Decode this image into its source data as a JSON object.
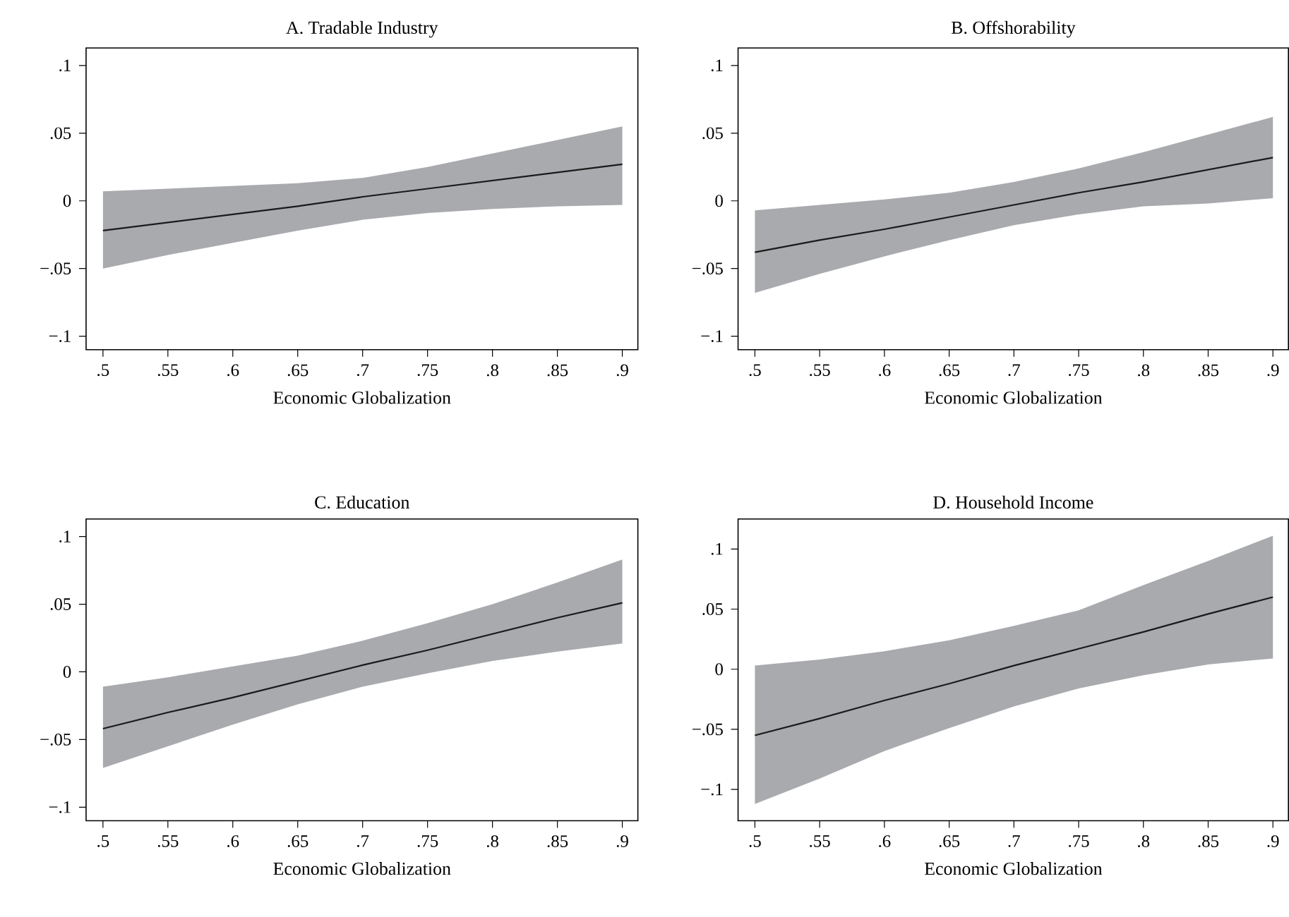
{
  "chart_data": [
    {
      "type": "line",
      "title": "A. Tradable Industry",
      "xlabel": "Economic Globalization",
      "x": [
        0.5,
        0.55,
        0.6,
        0.65,
        0.7,
        0.75,
        0.8,
        0.85,
        0.9
      ],
      "series": [
        {
          "color": "#1a1a1a",
          "values": [
            -0.022,
            -0.016,
            -0.01,
            -0.004,
            0.003,
            0.009,
            0.015,
            0.021,
            0.027
          ],
          "lower": [
            -0.05,
            -0.04,
            -0.031,
            -0.022,
            -0.014,
            -0.009,
            -0.006,
            -0.004,
            -0.003
          ],
          "upper": [
            0.007,
            0.009,
            0.011,
            0.013,
            0.017,
            0.025,
            0.035,
            0.045,
            0.055
          ]
        }
      ],
      "xlim": [
        0.487,
        0.912
      ],
      "ylim": [
        -0.11,
        0.113
      ],
      "xticks": [
        {
          "value": 0.5,
          "label": ".5"
        },
        {
          "value": 0.55,
          "label": ".55"
        },
        {
          "value": 0.6,
          "label": ".6"
        },
        {
          "value": 0.65,
          "label": ".65"
        },
        {
          "value": 0.7,
          "label": ".7"
        },
        {
          "value": 0.75,
          "label": ".75"
        },
        {
          "value": 0.8,
          "label": ".8"
        },
        {
          "value": 0.85,
          "label": ".85"
        },
        {
          "value": 0.9,
          "label": ".9"
        }
      ],
      "yticks": [
        {
          "value": -0.1,
          "label": "−.1"
        },
        {
          "value": -0.05,
          "label": "−.05"
        },
        0,
        {
          "value": 0.05,
          "label": ".05"
        },
        {
          "value": 0.1,
          "label": ".1"
        }
      ]
    },
    {
      "type": "line",
      "title": "B. Offshorability",
      "xlabel": "Economic Globalization",
      "x": [
        0.5,
        0.55,
        0.6,
        0.65,
        0.7,
        0.75,
        0.8,
        0.85,
        0.9
      ],
      "series": [
        {
          "color": "#1a1a1a",
          "values": [
            -0.038,
            -0.029,
            -0.021,
            -0.012,
            -0.003,
            0.006,
            0.014,
            0.023,
            0.032
          ],
          "lower": [
            -0.068,
            -0.054,
            -0.041,
            -0.029,
            -0.018,
            -0.01,
            -0.004,
            -0.002,
            0.002
          ],
          "upper": [
            -0.007,
            -0.003,
            0.001,
            0.006,
            0.014,
            0.024,
            0.036,
            0.049,
            0.062
          ]
        }
      ],
      "xlim": [
        0.487,
        0.912
      ],
      "ylim": [
        -0.11,
        0.113
      ],
      "xticks": [
        {
          "value": 0.5,
          "label": ".5"
        },
        {
          "value": 0.55,
          "label": ".55"
        },
        {
          "value": 0.6,
          "label": ".6"
        },
        {
          "value": 0.65,
          "label": ".65"
        },
        {
          "value": 0.7,
          "label": ".7"
        },
        {
          "value": 0.75,
          "label": ".75"
        },
        {
          "value": 0.8,
          "label": ".8"
        },
        {
          "value": 0.85,
          "label": ".85"
        },
        {
          "value": 0.9,
          "label": ".9"
        }
      ],
      "yticks": [
        {
          "value": -0.1,
          "label": "−.1"
        },
        {
          "value": -0.05,
          "label": "−.05"
        },
        0,
        {
          "value": 0.05,
          "label": ".05"
        },
        {
          "value": 0.1,
          "label": ".1"
        }
      ]
    },
    {
      "type": "line",
      "title": "C. Education",
      "xlabel": "Economic Globalization",
      "x": [
        0.5,
        0.55,
        0.6,
        0.65,
        0.7,
        0.75,
        0.8,
        0.85,
        0.9
      ],
      "series": [
        {
          "color": "#1a1a1a",
          "values": [
            -0.042,
            -0.03,
            -0.019,
            -0.007,
            0.005,
            0.016,
            0.028,
            0.04,
            0.051
          ],
          "lower": [
            -0.071,
            -0.055,
            -0.039,
            -0.024,
            -0.011,
            -0.001,
            0.008,
            0.015,
            0.021
          ],
          "upper": [
            -0.011,
            -0.004,
            0.004,
            0.012,
            0.023,
            0.036,
            0.05,
            0.066,
            0.083
          ]
        }
      ],
      "xlim": [
        0.487,
        0.912
      ],
      "ylim": [
        -0.11,
        0.113
      ],
      "xticks": [
        {
          "value": 0.5,
          "label": ".5"
        },
        {
          "value": 0.55,
          "label": ".55"
        },
        {
          "value": 0.6,
          "label": ".6"
        },
        {
          "value": 0.65,
          "label": ".65"
        },
        {
          "value": 0.7,
          "label": ".7"
        },
        {
          "value": 0.75,
          "label": ".75"
        },
        {
          "value": 0.8,
          "label": ".8"
        },
        {
          "value": 0.85,
          "label": ".85"
        },
        {
          "value": 0.9,
          "label": ".9"
        }
      ],
      "yticks": [
        {
          "value": -0.1,
          "label": "−.1"
        },
        {
          "value": -0.05,
          "label": "−.05"
        },
        0,
        {
          "value": 0.05,
          "label": ".05"
        },
        {
          "value": 0.1,
          "label": ".1"
        }
      ]
    },
    {
      "type": "line",
      "title": "D. Household Income",
      "xlabel": "Economic Globalization",
      "x": [
        0.5,
        0.55,
        0.6,
        0.65,
        0.7,
        0.75,
        0.8,
        0.85,
        0.9
      ],
      "series": [
        {
          "color": "#1a1a1a",
          "values": [
            -0.055,
            -0.041,
            -0.026,
            -0.012,
            0.003,
            0.017,
            0.031,
            0.046,
            0.06
          ],
          "lower": [
            -0.112,
            -0.091,
            -0.068,
            -0.049,
            -0.031,
            -0.016,
            -0.005,
            0.004,
            0.009
          ],
          "upper": [
            0.003,
            0.008,
            0.015,
            0.024,
            0.036,
            0.049,
            0.07,
            0.09,
            0.111
          ]
        }
      ],
      "xlim": [
        0.487,
        0.912
      ],
      "ylim": [
        -0.126,
        0.125
      ],
      "xticks": [
        {
          "value": 0.5,
          "label": ".5"
        },
        {
          "value": 0.55,
          "label": ".55"
        },
        {
          "value": 0.6,
          "label": ".6"
        },
        {
          "value": 0.65,
          "label": ".65"
        },
        {
          "value": 0.7,
          "label": ".7"
        },
        {
          "value": 0.75,
          "label": ".75"
        },
        {
          "value": 0.8,
          "label": ".8"
        },
        {
          "value": 0.85,
          "label": ".85"
        },
        {
          "value": 0.9,
          "label": ".9"
        }
      ],
      "yticks": [
        {
          "value": -0.1,
          "label": "−.1"
        },
        {
          "value": -0.05,
          "label": "−.05"
        },
        0,
        {
          "value": 0.05,
          "label": ".05"
        },
        {
          "value": 0.1,
          "label": ".1"
        }
      ]
    }
  ]
}
